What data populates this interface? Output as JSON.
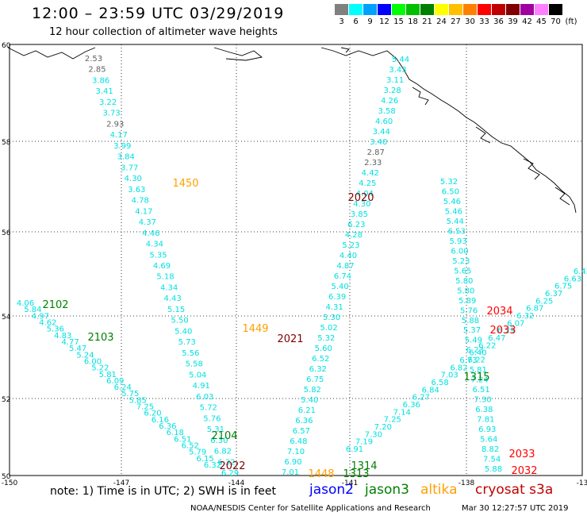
{
  "header": {
    "title": "12:00 – 23:59 UTC 03/29/2019",
    "subtitle": "12 hour collection of altimeter wave heights"
  },
  "color_scale": {
    "bins": [
      {
        "label": "3",
        "color": "#808080"
      },
      {
        "label": "6",
        "color": "#00ffff"
      },
      {
        "label": "9",
        "color": "#00a0ff"
      },
      {
        "label": "12",
        "color": "#0000ff"
      },
      {
        "label": "15",
        "color": "#00ff00"
      },
      {
        "label": "18",
        "color": "#00c000"
      },
      {
        "label": "21",
        "color": "#008000"
      },
      {
        "label": "24",
        "color": "#ffff00"
      },
      {
        "label": "27",
        "color": "#ffc000"
      },
      {
        "label": "30",
        "color": "#ff8000"
      },
      {
        "label": "33",
        "color": "#ff0000"
      },
      {
        "label": "36",
        "color": "#c00000"
      },
      {
        "label": "39",
        "color": "#800000"
      },
      {
        "label": "42",
        "color": "#a000a0"
      },
      {
        "label": "45",
        "color": "#ff80ff"
      },
      {
        "label": "70",
        "color": "#000000"
      }
    ],
    "unit": "(ft)"
  },
  "axes": {
    "lat_labels": [
      "60",
      "58",
      "56",
      "54",
      "52",
      "50"
    ],
    "lon_labels": [
      "-150",
      "-147",
      "-144",
      "-141",
      "-138",
      "-13"
    ]
  },
  "tracks": [
    {
      "name": "track-a",
      "color": "#00e0e0",
      "values": [
        "2.53",
        "2.85",
        "3.86",
        "3.41",
        "3.22",
        "3.73",
        "2.93",
        "4.17",
        "3.99",
        "3.84",
        "3.77",
        "4.30",
        "3.63",
        "4.78",
        "4.17",
        "4.37",
        "4.46",
        "4.34",
        "5.35",
        "4.69",
        "5.18",
        "4.34",
        "4.43",
        "5.15",
        "5.50",
        "5.40",
        "5.73",
        "5.56",
        "5.58",
        "5.04",
        "4.91",
        "6.03",
        "5.72",
        "5.76",
        "5.31",
        "6.30",
        "6.82",
        "6.32",
        "6.29"
      ]
    },
    {
      "name": "track-b",
      "color": "#00e0e0",
      "values": [
        "4.06",
        "5.84",
        "4.97",
        "4.62",
        "5.36",
        "4.83",
        "4.77",
        "5.47",
        "5.24",
        "6.00",
        "5.22",
        "5.81",
        "6.09",
        "6.24",
        "5.75",
        "5.85",
        "7.25",
        "6.20",
        "6.16",
        "6.36",
        "6.18",
        "6.51",
        "6.52",
        "5.79",
        "6.15",
        "6.32"
      ]
    },
    {
      "name": "track-c",
      "color": "#00e0e0",
      "values": [
        "5.44",
        "3.43",
        "3.11",
        "3.28",
        "4.26",
        "3.58",
        "4.60",
        "3.44",
        "3.40",
        "2.87",
        "2.33",
        "4.42",
        "4.25",
        "4.04",
        "4.30",
        "3.85",
        "6.23",
        "4.28",
        "5.23",
        "4.40",
        "4.87",
        "6.74",
        "5.40",
        "6.39",
        "4.31",
        "5.30",
        "5.02",
        "5.32",
        "5.60",
        "6.52",
        "6.32",
        "6.75",
        "5.82",
        "5.40",
        "6.21",
        "6.36",
        "6.57",
        "6.48",
        "7.10",
        "6.90",
        "7.01"
      ]
    },
    {
      "name": "track-d",
      "color": "#00e0e0",
      "values": [
        "6.91",
        "7.19",
        "7.30",
        "7.20",
        "7.25",
        "7.14",
        "6.36",
        "6.27",
        "6.84",
        "6.58",
        "7.03",
        "6.82",
        "6.73",
        "6.40",
        "6.22",
        "6.47",
        "6.29",
        "6.07",
        "6.32",
        "6.87",
        "6.25",
        "6.37",
        "6.75",
        "6.63",
        "6.42"
      ]
    },
    {
      "name": "track-e",
      "color": "#00e0e0",
      "values": [
        "5.32",
        "6.50",
        "5.46",
        "5.46",
        "5.44",
        "6.53",
        "5.93",
        "6.00",
        "5.23",
        "5.65",
        "5.80",
        "5.80",
        "5.89",
        "5.76",
        "5.88",
        "5.37",
        "5.49",
        "6.23",
        "6.22",
        "5.81",
        "7.24",
        "6.51",
        "7.30",
        "6.38",
        "7.81",
        "6.93",
        "5.64",
        "8.82",
        "7.54",
        "5.88"
      ]
    }
  ],
  "gray_values": [
    "2.53",
    "2.85",
    "2.93",
    "2.87",
    "2.33"
  ],
  "time_labels": [
    {
      "text": "1450",
      "color": "#ffa000"
    },
    {
      "text": "2020",
      "color": "#800000"
    },
    {
      "text": "2102",
      "color": "#008000"
    },
    {
      "text": "2103",
      "color": "#008000"
    },
    {
      "text": "1449",
      "color": "#ffa000"
    },
    {
      "text": "2021",
      "color": "#800000"
    },
    {
      "text": "2034",
      "color": "#ff0000"
    },
    {
      "text": "2033",
      "color": "#ff0000"
    },
    {
      "text": "1315",
      "color": "#008000"
    },
    {
      "text": "2104",
      "color": "#008000"
    },
    {
      "text": "2022",
      "color": "#800000"
    },
    {
      "text": "1314",
      "color": "#008000"
    },
    {
      "text": "1313",
      "color": "#008000"
    },
    {
      "text": "1448",
      "color": "#ffa000"
    },
    {
      "text": "2033",
      "color": "#ff0000"
    },
    {
      "text": "2032",
      "color": "#ff0000"
    }
  ],
  "footer": {
    "note": "note: 1) Time is in UTC; 2) SWH is in feet",
    "legend": [
      {
        "label": "jason2",
        "color": "#0000ff"
      },
      {
        "label": "jason3",
        "color": "#008000"
      },
      {
        "label": "altika",
        "color": "#ffa000"
      },
      {
        "label": "cryosat s3a",
        "color": "#c00000"
      }
    ],
    "credit": "NOAA/NESDIS Center for Satellite Applications and Research",
    "stamp": "Mar 30 12:27:57 UTC 2019"
  }
}
